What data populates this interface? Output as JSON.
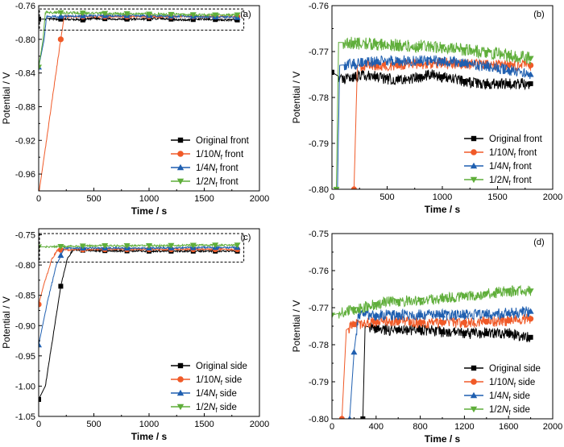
{
  "figure": {
    "series_colors": [
      "#000000",
      "#f05a28",
      "#1f5fb0",
      "#5fae3a"
    ],
    "series_markers": [
      "square",
      "circle",
      "triangle-up",
      "triangle-down"
    ]
  },
  "chart_data": [
    {
      "panel_label": "(a)",
      "type": "line",
      "xlabel": "Time / s",
      "ylabel": "Potential / V",
      "xlim": [
        0,
        2000
      ],
      "ylim": [
        -0.98,
        -0.76
      ],
      "xticks": [
        0,
        500,
        1000,
        1500,
        2000
      ],
      "yticks": [
        -0.96,
        -0.92,
        -0.88,
        -0.84,
        -0.8,
        -0.76
      ],
      "ytick_labels": [
        "-0.96",
        "-0.92",
        "-0.88",
        "-0.84",
        "-0.80",
        "-0.76"
      ],
      "legend_position": "lower-right",
      "inset_box": {
        "x": [
          0,
          1800
        ],
        "y": [
          -0.789,
          -0.764
        ]
      },
      "series": [
        {
          "name": "Original front",
          "suffix": "",
          "marker_every": 200,
          "noise": 0.0012,
          "points": [
            [
              0,
              -0.776
            ],
            [
              200,
              -0.776
            ],
            [
              400,
              -0.777
            ],
            [
              500,
              -0.775
            ],
            [
              700,
              -0.776
            ],
            [
              900,
              -0.776
            ],
            [
              1100,
              -0.775
            ],
            [
              1300,
              -0.777
            ],
            [
              1500,
              -0.776
            ],
            [
              1700,
              -0.777
            ],
            [
              1800,
              -0.777
            ]
          ]
        },
        {
          "name": "1/10",
          "suffix": " front",
          "marker_every": 200,
          "noise": 0.0012,
          "points": [
            [
              0,
              -0.985
            ],
            [
              200,
              -0.8
            ],
            [
              230,
              -0.773
            ],
            [
              500,
              -0.773
            ],
            [
              1000,
              -0.773
            ],
            [
              1500,
              -0.773
            ],
            [
              1800,
              -0.773
            ]
          ]
        },
        {
          "name": "1/4",
          "suffix": " front",
          "marker_every": 200,
          "noise": 0.0012,
          "points": [
            [
              0,
              -0.833
            ],
            [
              50,
              -0.8
            ],
            [
              70,
              -0.773
            ],
            [
              500,
              -0.772
            ],
            [
              1000,
              -0.772
            ],
            [
              1500,
              -0.773
            ],
            [
              1800,
              -0.774
            ]
          ]
        },
        {
          "name": "1/2",
          "suffix": " front",
          "marker_every": 200,
          "noise": 0.0014,
          "points": [
            [
              0,
              -0.833
            ],
            [
              40,
              -0.8
            ],
            [
              60,
              -0.768
            ],
            [
              500,
              -0.769
            ],
            [
              1000,
              -0.77
            ],
            [
              1500,
              -0.771
            ],
            [
              1800,
              -0.771
            ]
          ]
        }
      ]
    },
    {
      "panel_label": "(b)",
      "type": "line",
      "xlabel": "Time / s",
      "ylabel": "Potential / V",
      "xlim": [
        0,
        2000
      ],
      "ylim": [
        -0.8,
        -0.76
      ],
      "xticks": [
        0,
        500,
        1000,
        1500,
        2000
      ],
      "yticks": [
        -0.8,
        -0.79,
        -0.78,
        -0.77,
        -0.76
      ],
      "ytick_labels": [
        "-0.80",
        "-0.79",
        "-0.78",
        "-0.77",
        "-0.76"
      ],
      "legend_position": "lower-right",
      "series": [
        {
          "name": "Original front",
          "suffix": "",
          "marker_every": 200,
          "noise": 0.0012,
          "points": [
            [
              0,
              -0.7745
            ],
            [
              100,
              -0.776
            ],
            [
              300,
              -0.775
            ],
            [
              500,
              -0.776
            ],
            [
              700,
              -0.776
            ],
            [
              900,
              -0.775
            ],
            [
              1100,
              -0.776
            ],
            [
              1300,
              -0.777
            ],
            [
              1500,
              -0.777
            ],
            [
              1700,
              -0.777
            ],
            [
              1800,
              -0.777
            ]
          ]
        },
        {
          "name": "1/10",
          "suffix": " front",
          "marker_every": 200,
          "noise": 0.0012,
          "points": [
            [
              200,
              -0.8
            ],
            [
              230,
              -0.773
            ],
            [
              500,
              -0.773
            ],
            [
              1000,
              -0.7725
            ],
            [
              1500,
              -0.773
            ],
            [
              1800,
              -0.773
            ]
          ]
        },
        {
          "name": "1/4",
          "suffix": " front",
          "marker_every": 200,
          "noise": 0.0012,
          "points": [
            [
              50,
              -0.8
            ],
            [
              70,
              -0.773
            ],
            [
              500,
              -0.772
            ],
            [
              1000,
              -0.772
            ],
            [
              1500,
              -0.7735
            ],
            [
              1800,
              -0.775
            ]
          ]
        },
        {
          "name": "1/2",
          "suffix": " front",
          "marker_every": 200,
          "noise": 0.0014,
          "points": [
            [
              40,
              -0.8
            ],
            [
              60,
              -0.768
            ],
            [
              500,
              -0.7685
            ],
            [
              1000,
              -0.769
            ],
            [
              1500,
              -0.7705
            ],
            [
              1800,
              -0.7715
            ]
          ]
        }
      ]
    },
    {
      "panel_label": "(c)",
      "type": "line",
      "xlabel": "Time / s",
      "ylabel": "Potential / V",
      "xlim": [
        0,
        2000
      ],
      "ylim": [
        -1.05,
        -0.74
      ],
      "xticks": [
        0,
        500,
        1000,
        1500,
        2000
      ],
      "yticks": [
        -1.05,
        -1.0,
        -0.95,
        -0.9,
        -0.85,
        -0.8,
        -0.75
      ],
      "ytick_labels": [
        "-1.05",
        "-1.00",
        "-0.95",
        "-0.90",
        "-0.85",
        "-0.80",
        "-0.75"
      ],
      "legend_position": "lower-right",
      "inset_box": {
        "x": [
          0,
          1800
        ],
        "y": [
          -0.795,
          -0.748
        ]
      },
      "series": [
        {
          "name": "Original side",
          "suffix": "",
          "marker_every": 200,
          "noise": 0.0015,
          "points": [
            [
              0,
              -1.022
            ],
            [
              60,
              -1.0
            ],
            [
              120,
              -0.93
            ],
            [
              200,
              -0.835
            ],
            [
              260,
              -0.79
            ],
            [
              310,
              -0.775
            ],
            [
              500,
              -0.776
            ],
            [
              1000,
              -0.777
            ],
            [
              1500,
              -0.777
            ],
            [
              1800,
              -0.777
            ]
          ]
        },
        {
          "name": "1/10",
          "suffix": " side",
          "marker_every": 200,
          "noise": 0.0015,
          "points": [
            [
              0,
              -0.865
            ],
            [
              50,
              -0.83
            ],
            [
              120,
              -0.79
            ],
            [
              170,
              -0.775
            ],
            [
              500,
              -0.774
            ],
            [
              1000,
              -0.774
            ],
            [
              1500,
              -0.774
            ],
            [
              1800,
              -0.774
            ]
          ]
        },
        {
          "name": "1/4",
          "suffix": " side",
          "marker_every": 200,
          "noise": 0.0015,
          "points": [
            [
              0,
              -0.932
            ],
            [
              80,
              -0.86
            ],
            [
              160,
              -0.8
            ],
            [
              230,
              -0.772
            ],
            [
              500,
              -0.772
            ],
            [
              1000,
              -0.772
            ],
            [
              1500,
              -0.771
            ],
            [
              1800,
              -0.771
            ]
          ]
        },
        {
          "name": "1/2",
          "suffix": " side",
          "marker_every": 200,
          "noise": 0.0015,
          "points": [
            [
              0,
              -0.77
            ],
            [
              500,
              -0.768
            ],
            [
              1000,
              -0.768
            ],
            [
              1500,
              -0.767
            ],
            [
              1800,
              -0.767
            ]
          ]
        }
      ]
    },
    {
      "panel_label": "(d)",
      "type": "line",
      "xlabel": "Time / s",
      "ylabel": "Potential / V",
      "xlim": [
        0,
        2000
      ],
      "ylim": [
        -0.8,
        -0.75
      ],
      "xticks": [
        0,
        400,
        800,
        1200,
        1600,
        2000
      ],
      "yticks": [
        -0.8,
        -0.79,
        -0.78,
        -0.77,
        -0.76,
        -0.75
      ],
      "ytick_labels": [
        "-0.80",
        "-0.79",
        "-0.78",
        "-0.77",
        "-0.76",
        "-0.75"
      ],
      "legend_position": "lower-right",
      "series": [
        {
          "name": "Original side",
          "suffix": "",
          "marker_every": 200,
          "noise": 0.0015,
          "points": [
            [
              280,
              -0.8
            ],
            [
              300,
              -0.775
            ],
            [
              500,
              -0.776
            ],
            [
              800,
              -0.776
            ],
            [
              1200,
              -0.777
            ],
            [
              1600,
              -0.777
            ],
            [
              1800,
              -0.778
            ]
          ]
        },
        {
          "name": "1/10",
          "suffix": " side",
          "marker_every": 200,
          "noise": 0.0015,
          "points": [
            [
              90,
              -0.8
            ],
            [
              130,
              -0.776
            ],
            [
              200,
              -0.7745
            ],
            [
              500,
              -0.7735
            ],
            [
              800,
              -0.774
            ],
            [
              1200,
              -0.774
            ],
            [
              1600,
              -0.7735
            ],
            [
              1800,
              -0.773
            ]
          ]
        },
        {
          "name": "1/4",
          "suffix": " side",
          "marker_every": 200,
          "noise": 0.0015,
          "points": [
            [
              160,
              -0.8
            ],
            [
              200,
              -0.782
            ],
            [
              240,
              -0.772
            ],
            [
              500,
              -0.772
            ],
            [
              800,
              -0.772
            ],
            [
              1200,
              -0.772
            ],
            [
              1600,
              -0.7715
            ],
            [
              1800,
              -0.771
            ]
          ]
        },
        {
          "name": "1/2",
          "suffix": " side",
          "marker_every": 200,
          "noise": 0.0015,
          "points": [
            [
              0,
              -0.772
            ],
            [
              200,
              -0.7705
            ],
            [
              500,
              -0.7685
            ],
            [
              800,
              -0.768
            ],
            [
              1200,
              -0.767
            ],
            [
              1600,
              -0.7655
            ],
            [
              1800,
              -0.7655
            ]
          ]
        }
      ]
    }
  ]
}
